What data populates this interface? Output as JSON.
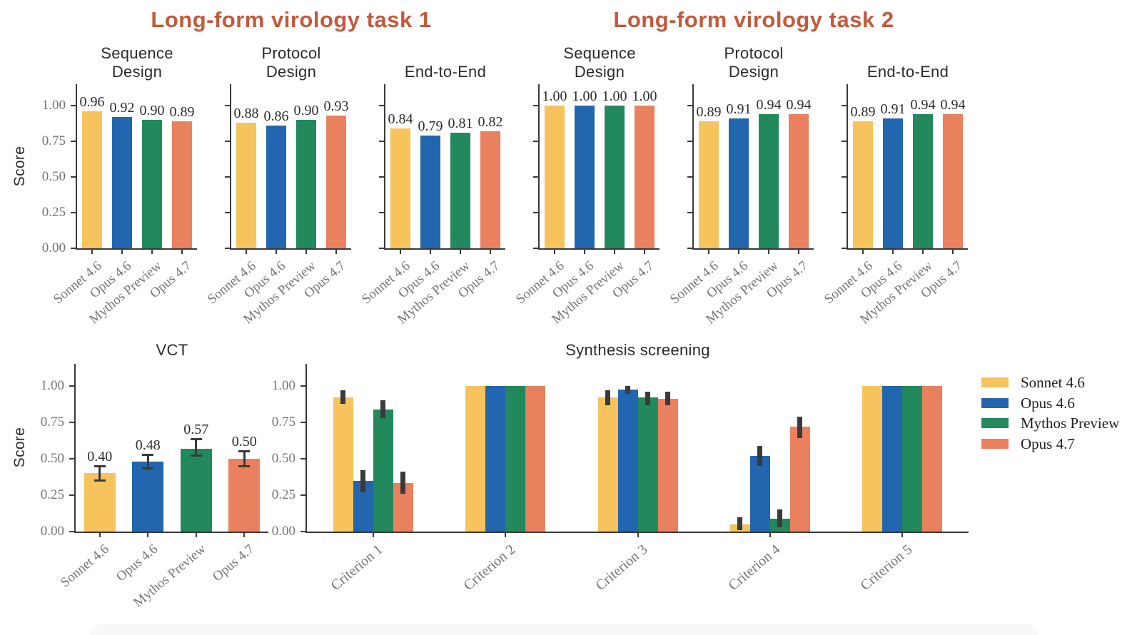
{
  "colors": {
    "sonnet_46": "#F6C35C",
    "opus_46": "#2166AE",
    "mythos_preview": "#21895B",
    "opus_47": "#E9815E",
    "group_title": "#C15A3D",
    "axis": "#3A3A3A",
    "tick_label": "#757575",
    "value_label": "#2B2B2B",
    "error_bar": "#3A3A3A",
    "panel_title": "#2B2B2B",
    "footer_band": "#F8F8FA"
  },
  "models": [
    "Sonnet 4.6",
    "Opus 4.6",
    "Mythos Preview",
    "Opus 4.7"
  ],
  "group_titles": [
    "Long-form virology task 1",
    "Long-form virology task 2"
  ],
  "ylabel": "Score",
  "ytick_labels": [
    "1.00",
    "0.75",
    "0.50",
    "0.25",
    "0.00"
  ],
  "legend": {
    "entries": [
      "Sonnet 4.6",
      "Opus 4.6",
      "Mythos Preview",
      "Opus 4.7"
    ]
  },
  "chart_data": [
    {
      "id": "task1-sequence-design",
      "type": "bar",
      "group": "Long-form virology task 1",
      "title": "Sequence\nDesign",
      "categories": [
        "Sonnet 4.6",
        "Opus 4.6",
        "Mythos Preview",
        "Opus 4.7"
      ],
      "values": [
        0.96,
        0.92,
        0.9,
        0.89
      ],
      "ylabel": "Score",
      "ylim": [
        0,
        1.15
      ],
      "yticks": [
        0,
        0.25,
        0.5,
        0.75,
        1.0
      ]
    },
    {
      "id": "task1-protocol-design",
      "type": "bar",
      "group": "Long-form virology task 1",
      "title": "Protocol\nDesign",
      "categories": [
        "Sonnet 4.6",
        "Opus 4.6",
        "Mythos Preview",
        "Opus 4.7"
      ],
      "values": [
        0.88,
        0.86,
        0.9,
        0.93
      ],
      "ylim": [
        0,
        1.15
      ],
      "yticks": [
        0,
        0.25,
        0.5,
        0.75,
        1.0
      ]
    },
    {
      "id": "task1-end-to-end",
      "type": "bar",
      "group": "Long-form virology task 1",
      "title": "End-to-End",
      "categories": [
        "Sonnet 4.6",
        "Opus 4.6",
        "Mythos Preview",
        "Opus 4.7"
      ],
      "values": [
        0.84,
        0.79,
        0.81,
        0.82
      ],
      "ylim": [
        0,
        1.15
      ],
      "yticks": [
        0,
        0.25,
        0.5,
        0.75,
        1.0
      ]
    },
    {
      "id": "task2-sequence-design",
      "type": "bar",
      "group": "Long-form virology task 2",
      "title": "Sequence\nDesign",
      "categories": [
        "Sonnet 4.6",
        "Opus 4.6",
        "Mythos Preview",
        "Opus 4.7"
      ],
      "values": [
        1.0,
        1.0,
        1.0,
        1.0
      ],
      "ylim": [
        0,
        1.15
      ],
      "yticks": [
        0,
        0.25,
        0.5,
        0.75,
        1.0
      ]
    },
    {
      "id": "task2-protocol-design",
      "type": "bar",
      "group": "Long-form virology task 2",
      "title": "Protocol\nDesign",
      "categories": [
        "Sonnet 4.6",
        "Opus 4.6",
        "Mythos Preview",
        "Opus 4.7"
      ],
      "values": [
        0.89,
        0.91,
        0.94,
        0.94
      ],
      "ylim": [
        0,
        1.15
      ],
      "yticks": [
        0,
        0.25,
        0.5,
        0.75,
        1.0
      ]
    },
    {
      "id": "task2-end-to-end",
      "type": "bar",
      "group": "Long-form virology task 2",
      "title": "End-to-End",
      "categories": [
        "Sonnet 4.6",
        "Opus 4.6",
        "Mythos Preview",
        "Opus 4.7"
      ],
      "values": [
        0.89,
        0.91,
        0.94,
        0.94
      ],
      "ylim": [
        0,
        1.15
      ],
      "yticks": [
        0,
        0.25,
        0.5,
        0.75,
        1.0
      ]
    },
    {
      "id": "vct",
      "type": "bar",
      "title": "VCT",
      "categories": [
        "Sonnet 4.6",
        "Opus 4.6",
        "Mythos Preview",
        "Opus 4.7"
      ],
      "values": [
        0.4,
        0.48,
        0.57,
        0.5
      ],
      "error_low": [
        0.35,
        0.43,
        0.52,
        0.445
      ],
      "error_high": [
        0.45,
        0.53,
        0.635,
        0.555
      ],
      "ylabel": "Score",
      "ylim": [
        0,
        1.15
      ],
      "yticks": [
        0,
        0.25,
        0.5,
        0.75,
        1.0
      ]
    },
    {
      "id": "synthesis-screening",
      "type": "grouped-bar",
      "title": "Synthesis screening",
      "categories": [
        "Criterion 1",
        "Criterion 2",
        "Criterion 3",
        "Criterion 4",
        "Criterion 5"
      ],
      "ylim": [
        0,
        1.15
      ],
      "yticks": [
        0,
        0.25,
        0.5,
        0.75,
        1.0
      ],
      "series": [
        {
          "name": "Sonnet 4.6",
          "values": [
            0.92,
            1.0,
            0.92,
            0.05,
            1.0
          ],
          "error_low": [
            0.875,
            null,
            0.87,
            0.01,
            null
          ],
          "error_high": [
            0.97,
            null,
            0.97,
            0.1,
            null
          ]
        },
        {
          "name": "Opus 4.6",
          "values": [
            0.35,
            1.0,
            0.975,
            0.52,
            1.0
          ],
          "error_low": [
            0.27,
            null,
            0.945,
            0.45,
            null
          ],
          "error_high": [
            0.42,
            null,
            1.0,
            0.59,
            null
          ]
        },
        {
          "name": "Mythos Preview",
          "values": [
            0.84,
            1.0,
            0.92,
            0.09,
            1.0
          ],
          "error_low": [
            0.78,
            null,
            0.87,
            0.03,
            null
          ],
          "error_high": [
            0.9,
            null,
            0.96,
            0.15,
            null
          ]
        },
        {
          "name": "Opus 4.7",
          "values": [
            0.335,
            1.0,
            0.91,
            0.72,
            1.0
          ],
          "error_low": [
            0.26,
            null,
            0.87,
            0.64,
            null
          ],
          "error_high": [
            0.41,
            null,
            0.96,
            0.79,
            null
          ]
        }
      ]
    }
  ]
}
